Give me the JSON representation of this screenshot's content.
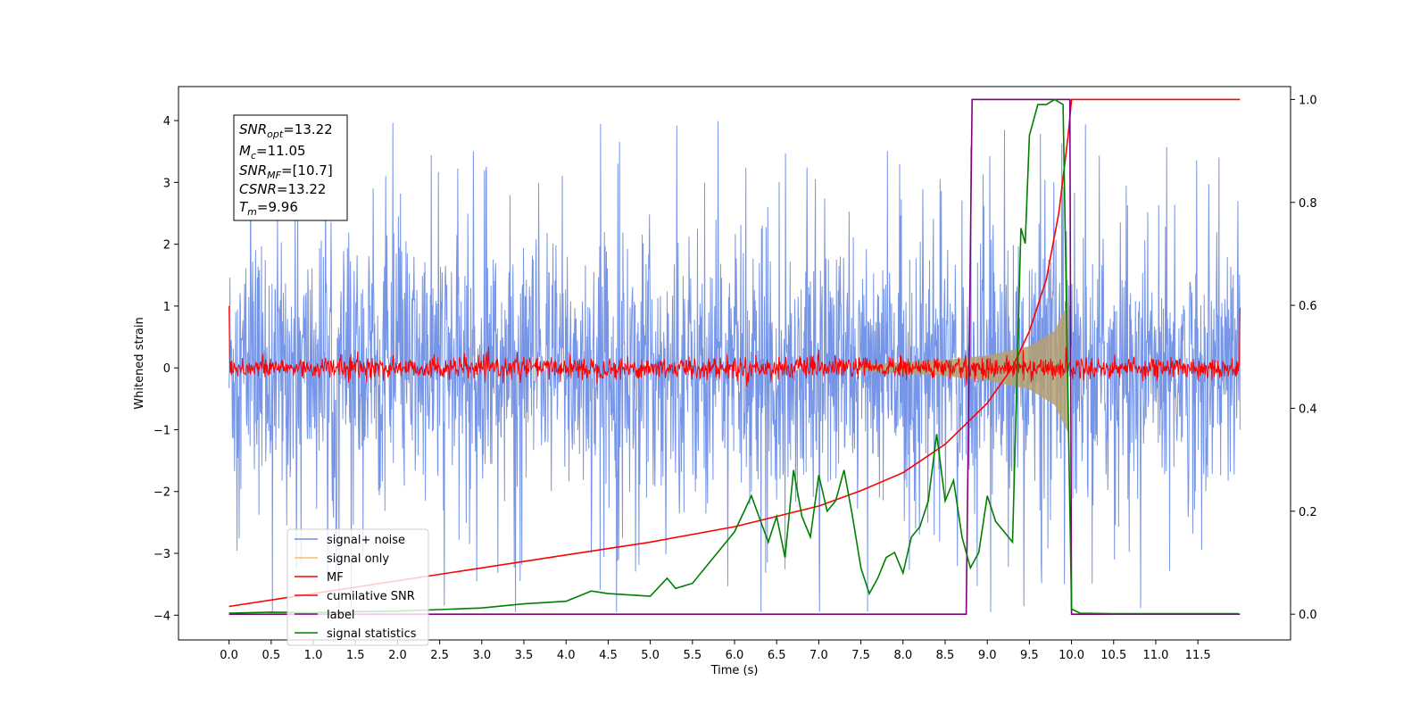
{
  "chart_data": {
    "type": "line",
    "xlabel": "Time (s)",
    "ylabel": "Whitened strain",
    "xlim": [
      -0.6,
      12.6
    ],
    "ylim_left": [
      -4.4,
      4.55
    ],
    "ylim_right": [
      -0.05,
      1.025
    ],
    "x_ticks": [
      0.0,
      0.5,
      1.0,
      1.5,
      2.0,
      2.5,
      3.0,
      3.5,
      4.0,
      4.5,
      5.0,
      5.5,
      6.0,
      6.5,
      7.0,
      7.5,
      8.0,
      8.5,
      9.0,
      9.5,
      10.0,
      10.5,
      11.0,
      11.5
    ],
    "x_tick_labels": [
      "0.0",
      "0.5",
      "1.0",
      "1.5",
      "2.0",
      "2.5",
      "3.0",
      "3.5",
      "4.0",
      "4.5",
      "5.0",
      "5.5",
      "6.0",
      "6.5",
      "7.0",
      "7.5",
      "8.0",
      "8.5",
      "9.0",
      "9.5",
      "10.0",
      "10.5",
      "11.0",
      "11.5"
    ],
    "y_ticks_left": [
      -4,
      -3,
      -2,
      -1,
      0,
      1,
      2,
      3,
      4
    ],
    "y_tick_labels_left": [
      "−4",
      "−3",
      "−2",
      "−1",
      "0",
      "1",
      "2",
      "3",
      "4"
    ],
    "y_ticks_right": [
      0.0,
      0.2,
      0.4,
      0.6,
      0.8,
      1.0
    ],
    "y_tick_labels_right": [
      "0.0",
      "0.2",
      "0.4",
      "0.6",
      "0.8",
      "1.0"
    ],
    "legend_position": "lower-left",
    "annotation": {
      "snr_opt": {
        "sym": "SNR",
        "sub": "opt",
        "value": "=13.22"
      },
      "mc": {
        "sym": "M",
        "sub": "c",
        "value": "=11.05"
      },
      "snr_mf": {
        "sym": "SNR",
        "sub": "MF",
        "value": "=[10.7]"
      },
      "csnr": {
        "sym": "CSNR",
        "sub": "",
        "value": "=13.22"
      },
      "tm": {
        "sym": "T",
        "sub": "m",
        "value": "=9.96"
      }
    },
    "series": [
      {
        "name": "signal+ noise",
        "color": "#6f8fe6",
        "axis": "left",
        "style": "dense noise band",
        "x_range": [
          0.0,
          12.0
        ],
        "envelope_upper": 2.4,
        "envelope_lower": -2.4,
        "peak_upper": 4.18,
        "peak_lower": -3.95
      },
      {
        "name": "signal only",
        "color": "#f5c060",
        "axis": "left",
        "style": "chirp envelope",
        "x_range": [
          7.5,
          9.96
        ],
        "amplitude_at": [
          [
            7.5,
            0.05
          ],
          [
            8.0,
            0.09
          ],
          [
            8.5,
            0.13
          ],
          [
            9.0,
            0.2
          ],
          [
            9.5,
            0.35
          ],
          [
            9.8,
            0.6
          ],
          [
            9.96,
            1.05
          ]
        ]
      },
      {
        "name": "MF",
        "color": "#ff0000",
        "axis": "left",
        "style": "noise band",
        "x_range": [
          0.0,
          12.0
        ],
        "envelope": 0.15,
        "edge_values": [
          [
            0.0,
            1.0
          ],
          [
            12.0,
            0.97
          ]
        ]
      },
      {
        "name": "cumilative SNR",
        "color": "#ff0000",
        "axis": "right",
        "x": [
          0.0,
          1.0,
          2.0,
          3.0,
          4.0,
          5.0,
          6.0,
          6.5,
          7.0,
          7.5,
          8.0,
          8.5,
          9.0,
          9.3,
          9.5,
          9.7,
          9.85,
          9.96,
          10.0,
          12.0
        ],
        "y": [
          0.015,
          0.04,
          0.065,
          0.09,
          0.115,
          0.14,
          0.17,
          0.19,
          0.21,
          0.24,
          0.275,
          0.33,
          0.41,
          0.48,
          0.55,
          0.65,
          0.78,
          0.93,
          1.0,
          1.0
        ]
      },
      {
        "name": "label",
        "color": "#800080",
        "axis": "right",
        "x": [
          0.0,
          8.75,
          8.82,
          9.98,
          10.0,
          12.0
        ],
        "y": [
          0.0,
          0.0,
          1.0,
          1.0,
          0.0,
          0.0
        ]
      },
      {
        "name": "signal statistics",
        "color": "#008000",
        "axis": "right",
        "x": [
          0.0,
          0.5,
          1.0,
          1.5,
          2.0,
          2.5,
          3.0,
          3.5,
          4.0,
          4.3,
          4.5,
          5.0,
          5.2,
          5.3,
          5.5,
          5.7,
          5.9,
          6.0,
          6.2,
          6.4,
          6.5,
          6.6,
          6.7,
          6.8,
          6.9,
          7.0,
          7.1,
          7.2,
          7.3,
          7.4,
          7.5,
          7.6,
          7.7,
          7.8,
          7.9,
          8.0,
          8.1,
          8.2,
          8.3,
          8.4,
          8.5,
          8.6,
          8.7,
          8.8,
          8.9,
          9.0,
          9.1,
          9.2,
          9.3,
          9.4,
          9.45,
          9.5,
          9.6,
          9.7,
          9.8,
          9.9,
          10.0,
          10.1,
          10.5,
          11.0,
          11.5,
          11.98
        ],
        "y": [
          0.002,
          0.004,
          0.003,
          0.005,
          0.006,
          0.009,
          0.012,
          0.02,
          0.025,
          0.045,
          0.04,
          0.035,
          0.07,
          0.05,
          0.06,
          0.1,
          0.14,
          0.16,
          0.23,
          0.14,
          0.19,
          0.11,
          0.28,
          0.19,
          0.15,
          0.27,
          0.2,
          0.22,
          0.28,
          0.19,
          0.09,
          0.04,
          0.07,
          0.11,
          0.12,
          0.08,
          0.15,
          0.17,
          0.22,
          0.35,
          0.22,
          0.26,
          0.15,
          0.09,
          0.12,
          0.23,
          0.18,
          0.16,
          0.14,
          0.75,
          0.72,
          0.93,
          0.99,
          0.99,
          1.0,
          0.99,
          0.01,
          0.002,
          0.001,
          0.001,
          0.001,
          0.001
        ]
      }
    ]
  }
}
